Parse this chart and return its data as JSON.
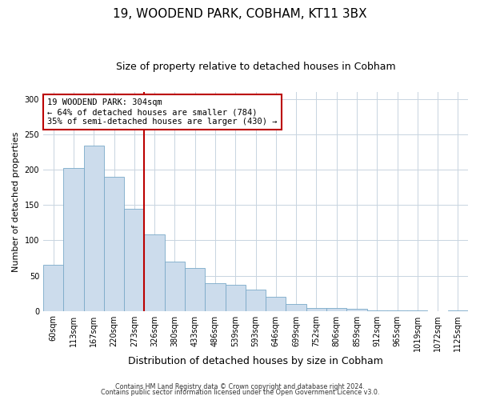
{
  "title": "19, WOODEND PARK, COBHAM, KT11 3BX",
  "subtitle": "Size of property relative to detached houses in Cobham",
  "xlabel": "Distribution of detached houses by size in Cobham",
  "ylabel": "Number of detached properties",
  "bar_labels": [
    "60sqm",
    "113sqm",
    "167sqm",
    "220sqm",
    "273sqm",
    "326sqm",
    "380sqm",
    "433sqm",
    "486sqm",
    "539sqm",
    "593sqm",
    "646sqm",
    "699sqm",
    "752sqm",
    "806sqm",
    "859sqm",
    "912sqm",
    "965sqm",
    "1019sqm",
    "1072sqm",
    "1125sqm"
  ],
  "bar_values": [
    65,
    202,
    234,
    190,
    145,
    108,
    70,
    61,
    39,
    37,
    30,
    20,
    10,
    4,
    4,
    3,
    1,
    1,
    1,
    0,
    1
  ],
  "bar_color": "#ccdcec",
  "bar_edge_color": "#7aaac8",
  "ylim": [
    0,
    310
  ],
  "marker_bin_index": 5,
  "marker_label": "19 WOODEND PARK: 304sqm",
  "annotation_line1": "← 64% of detached houses are smaller (784)",
  "annotation_line2": "35% of semi-detached houses are larger (430) →",
  "marker_color": "#bb0000",
  "box_edge_color": "#bb0000",
  "footer1": "Contains HM Land Registry data © Crown copyright and database right 2024.",
  "footer2": "Contains public sector information licensed under the Open Government Licence v3.0.",
  "background_color": "#ffffff",
  "grid_color": "#c8d4e0",
  "title_fontsize": 11,
  "subtitle_fontsize": 9,
  "xlabel_fontsize": 9,
  "ylabel_fontsize": 8,
  "tick_fontsize": 7,
  "annotation_fontsize": 7.5,
  "footer_fontsize": 5.8
}
